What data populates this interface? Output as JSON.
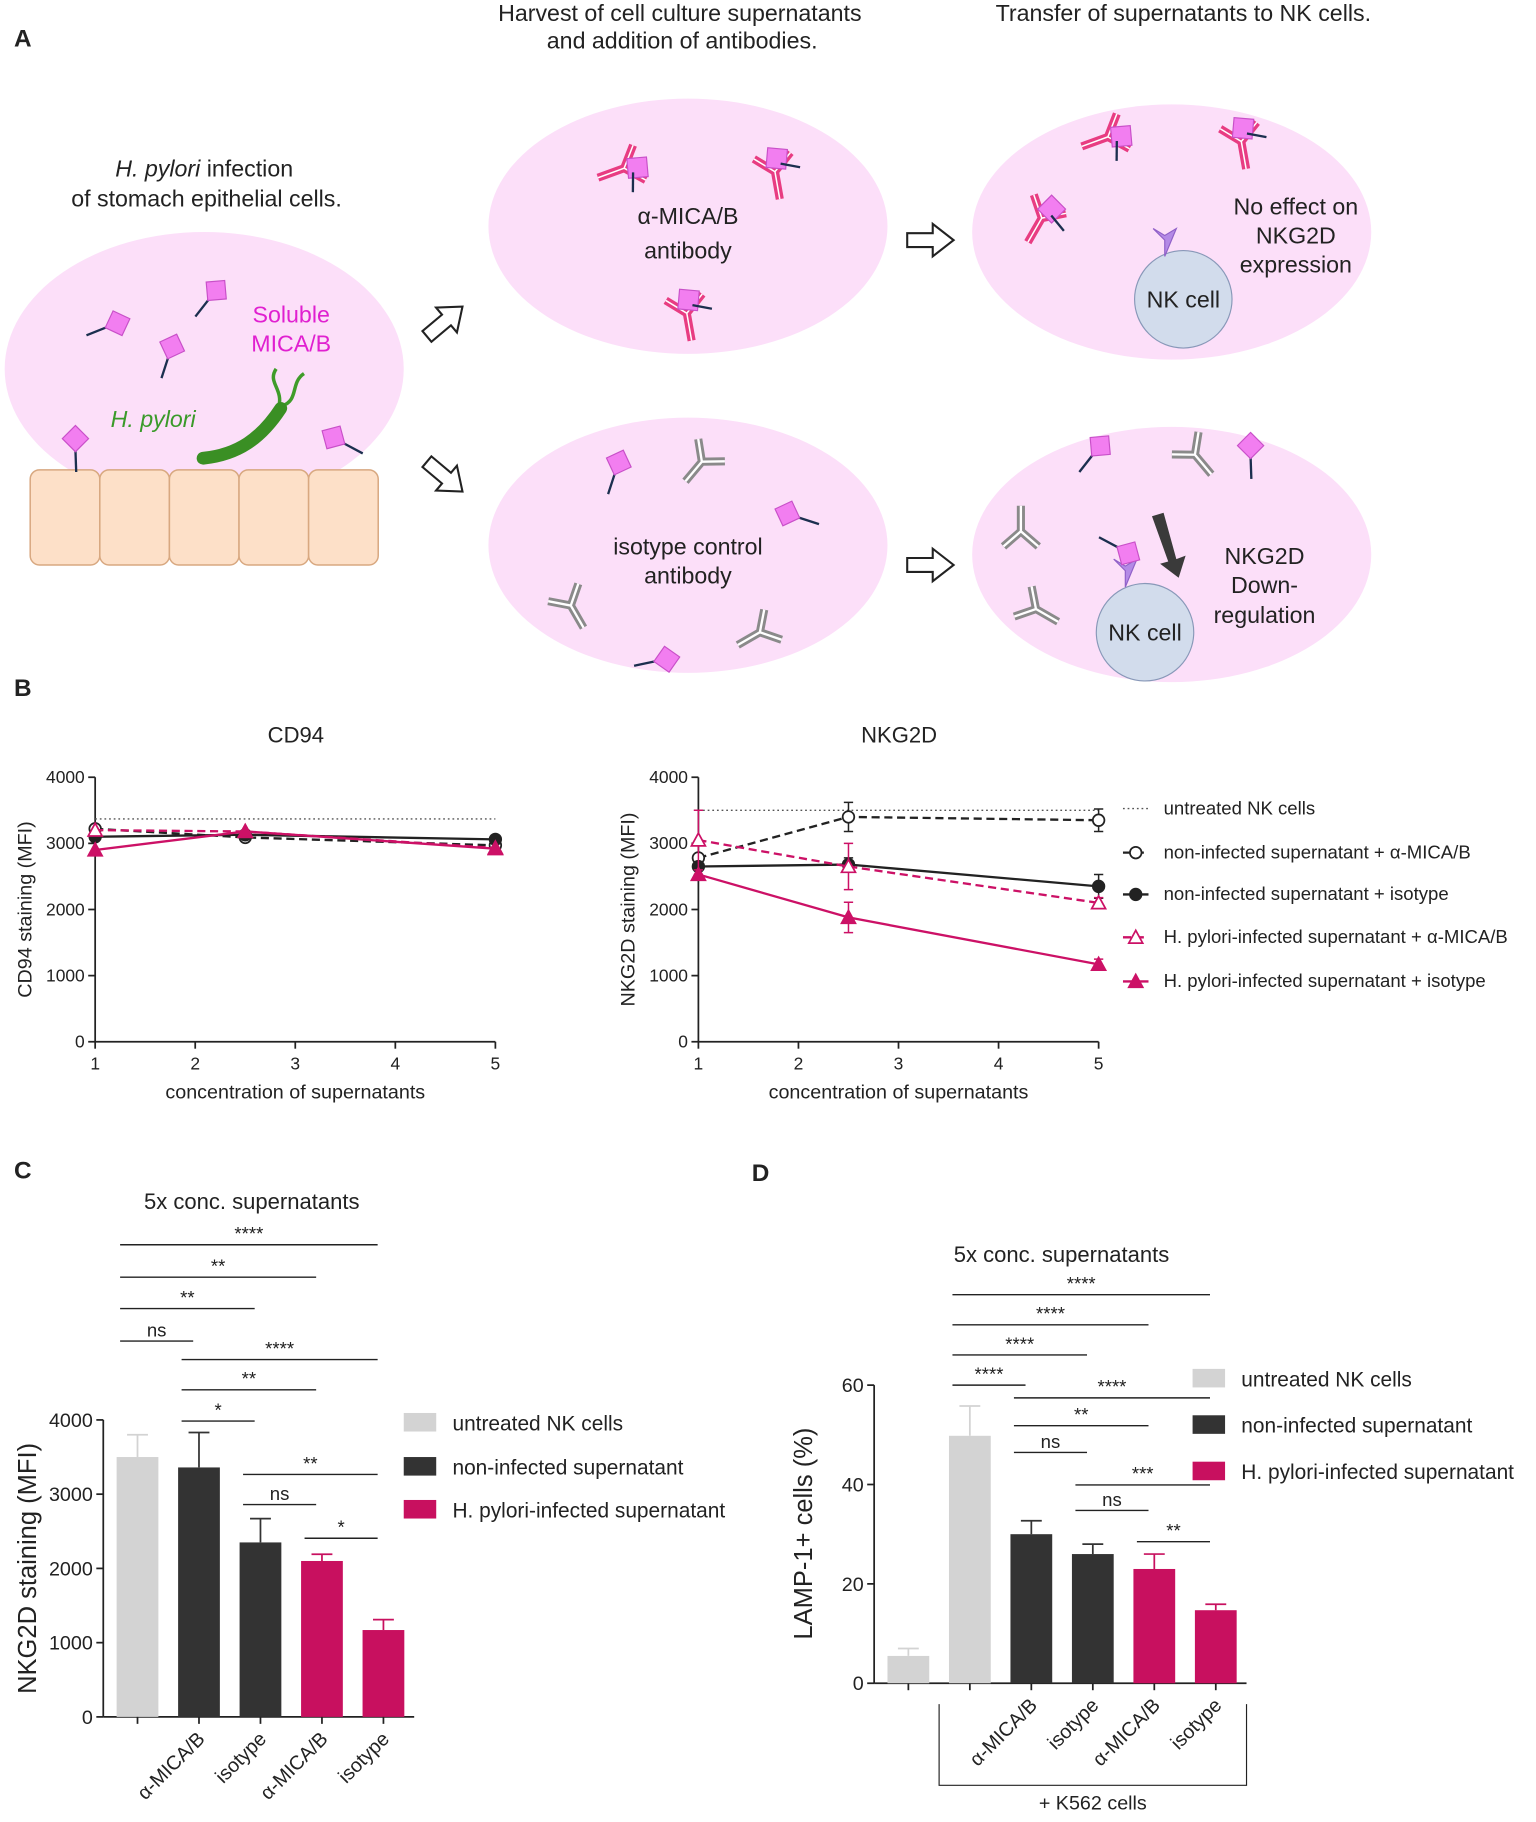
{
  "panels": {
    "A": "A",
    "B": "B",
    "C": "C",
    "D": "D"
  },
  "diagram": {
    "harvest_title": [
      "Harvest of cell culture supernatants",
      "and addition of antibodies."
    ],
    "transfer_title": "Transfer of supernatants to NK cells.",
    "infection_title": {
      "italic": "H. pylori",
      "rest": " infection",
      "line2": "of stomach epithelial cells."
    },
    "soluble_label": [
      "Soluble",
      "MICA/B"
    ],
    "bacterium_label": "H. pylori",
    "anti_label": [
      "α-MICA/B",
      "antibody"
    ],
    "isotype_label": [
      "isotype control",
      "antibody"
    ],
    "no_effect_label": [
      "No effect on",
      "NKG2D",
      "expression"
    ],
    "down_label": [
      "NKG2D",
      "Down-",
      "regulation"
    ],
    "nk_cell": [
      "NK cell",
      "NK cell"
    ]
  },
  "chart_data": [
    {
      "type": "line",
      "title": "CD94",
      "xlabel": "concentration of supernatants",
      "ylabel": "CD94 staining (MFI)",
      "x": [
        1,
        2.5,
        5
      ],
      "xlim": [
        1,
        5
      ],
      "xticks": [
        1,
        2,
        3,
        4,
        5
      ],
      "ylim": [
        0,
        4000
      ],
      "yticks": [
        0,
        1000,
        2000,
        3000,
        4000
      ],
      "series": [
        {
          "color": "#555555",
          "dash": "dotted",
          "marker": "none",
          "values": [
            3370,
            3370,
            3370
          ]
        },
        {
          "color": "#222222",
          "dash": "dashed",
          "marker": "circle-open",
          "values": [
            3220,
            3090,
            2970
          ]
        },
        {
          "color": "#222222",
          "dash": "solid",
          "marker": "circle",
          "values": [
            3100,
            3130,
            3060
          ]
        },
        {
          "color": "#cc1166",
          "dash": "dashed",
          "marker": "triangle-open",
          "values": [
            3200,
            3180,
            2930
          ]
        },
        {
          "color": "#cc1166",
          "dash": "solid",
          "marker": "triangle",
          "values": [
            2900,
            3180,
            2920
          ]
        }
      ]
    },
    {
      "type": "line",
      "title": "NKG2D",
      "xlabel": "concentration of supernatants",
      "ylabel": "NKG2D staining (MFI)",
      "x": [
        1,
        2.5,
        5
      ],
      "xlim": [
        1,
        5
      ],
      "xticks": [
        1,
        2,
        3,
        4,
        5
      ],
      "ylim": [
        0,
        4000
      ],
      "yticks": [
        0,
        1000,
        2000,
        3000,
        4000
      ],
      "legend": "right",
      "series": [
        {
          "name": "untreated NK cells",
          "color": "#555555",
          "dash": "dotted",
          "marker": "none",
          "values": [
            3500,
            3500,
            3500
          ]
        },
        {
          "name": "non-infected supernatant + α-MICA/B",
          "color": "#222222",
          "dash": "dashed",
          "marker": "circle-open",
          "values": [
            2780,
            3400,
            3350
          ],
          "errors": [
            0,
            220,
            170
          ]
        },
        {
          "name": "non-infected supernatant + isotype",
          "color": "#222222",
          "dash": "solid",
          "marker": "circle",
          "values": [
            2650,
            2680,
            2350
          ],
          "errors": [
            0,
            100,
            180
          ]
        },
        {
          "name": "H. pylori-infected supernatant + α-MICA/B",
          "color": "#cc1166",
          "dash": "dashed",
          "marker": "triangle-open",
          "values": [
            3050,
            2650,
            2100
          ],
          "errors": [
            450,
            350,
            80
          ]
        },
        {
          "name": "H. pylori-infected supernatant + isotype",
          "color": "#cc1166",
          "dash": "solid",
          "marker": "triangle",
          "values": [
            2530,
            1880,
            1170
          ],
          "errors": [
            0,
            230,
            80
          ]
        }
      ]
    },
    {
      "type": "bar",
      "title": "5x conc. supernatants",
      "ylabel": "NKG2D staining (MFI)",
      "categories": [
        null,
        "α-MICA/B",
        "isotype",
        "α-MICA/B",
        "isotype"
      ],
      "values": [
        3500,
        3360,
        2350,
        2100,
        1170
      ],
      "errors": [
        300,
        470,
        320,
        90,
        140
      ],
      "colors": [
        "#d3d3d3",
        "#333333",
        "#333333",
        "#c8105f",
        "#c8105f"
      ],
      "ylim": [
        0,
        4000
      ],
      "yticks": [
        0,
        1000,
        2000,
        3000,
        4000
      ],
      "legend": [
        {
          "name": "untreated NK cells",
          "color": "#d3d3d3"
        },
        {
          "name": "non-infected supernatant",
          "color": "#333333"
        },
        {
          "name": "H. pylori-infected supernatant",
          "color": "#c8105f"
        }
      ],
      "brackets": [
        {
          "from": 0,
          "to": 4,
          "label": "****"
        },
        {
          "from": 0,
          "to": 3,
          "label": "**"
        },
        {
          "from": 0,
          "to": 2,
          "label": "**"
        },
        {
          "from": 0,
          "to": 1,
          "label": "ns"
        },
        {
          "from": 1,
          "to": 4,
          "label": "****"
        },
        {
          "from": 1,
          "to": 3,
          "label": "**"
        },
        {
          "from": 1,
          "to": 2,
          "label": "*"
        },
        {
          "from": 2,
          "to": 4,
          "label": "**"
        },
        {
          "from": 2,
          "to": 3,
          "label": "ns"
        },
        {
          "from": 3,
          "to": 4,
          "label": "*"
        }
      ]
    },
    {
      "type": "bar",
      "title": "5x conc. supernatants",
      "ylabel": "LAMP-1+ cells (%)",
      "categories": [
        null,
        null,
        "α-MICA/B",
        "isotype",
        "α-MICA/B",
        "isotype"
      ],
      "values": [
        5.5,
        49.8,
        30,
        26,
        23,
        14.7
      ],
      "errors": [
        1.5,
        6,
        2.7,
        2,
        3,
        1.2
      ],
      "colors": [
        "#d3d3d3",
        "#d3d3d3",
        "#333333",
        "#333333",
        "#c8105f",
        "#c8105f"
      ],
      "ylim": [
        0,
        60
      ],
      "yticks": [
        0,
        20,
        40,
        60
      ],
      "legend": [
        {
          "name": "untreated NK cells",
          "color": "#d3d3d3"
        },
        {
          "name": "non-infected supernatant",
          "color": "#333333"
        },
        {
          "name": "H. pylori-infected supernatant",
          "color": "#c8105f"
        }
      ],
      "group": {
        "label": "+ K562 cells",
        "from": 1,
        "to": 5
      },
      "brackets": [
        {
          "from": 1,
          "to": 5,
          "label": "****"
        },
        {
          "from": 1,
          "to": 4,
          "label": "****"
        },
        {
          "from": 1,
          "to": 3,
          "label": "****"
        },
        {
          "from": 1,
          "to": 2,
          "label": "****"
        },
        {
          "from": 2,
          "to": 5,
          "label": "****"
        },
        {
          "from": 2,
          "to": 4,
          "label": "**"
        },
        {
          "from": 2,
          "to": 3,
          "label": "ns"
        },
        {
          "from": 3,
          "to": 5,
          "label": "***"
        },
        {
          "from": 3,
          "to": 4,
          "label": "ns"
        },
        {
          "from": 4,
          "to": 5,
          "label": "**"
        }
      ]
    }
  ]
}
